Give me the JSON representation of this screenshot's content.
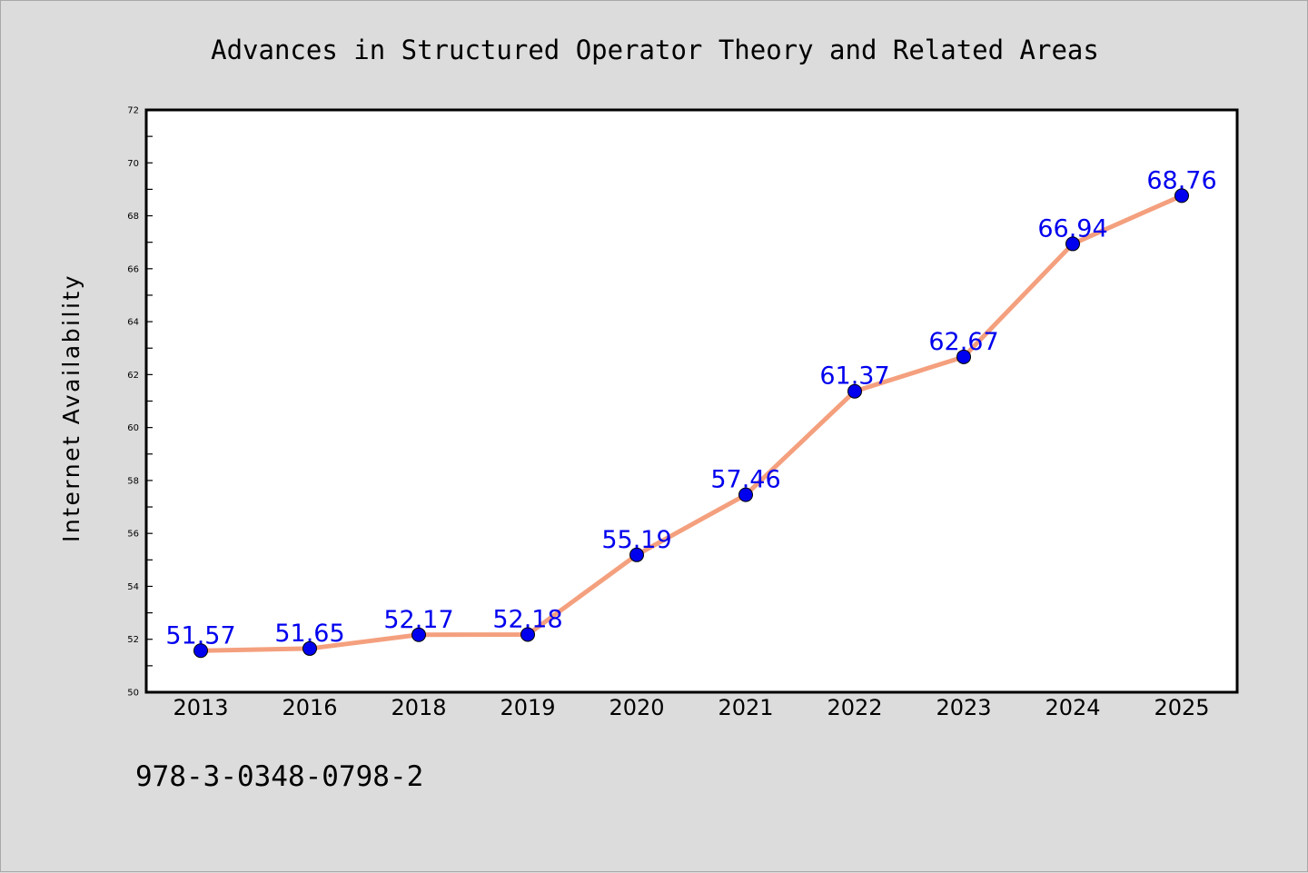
{
  "chart_data": {
    "type": "line",
    "title": "Advances in Structured Operator Theory and Related Areas",
    "xlabel": "",
    "ylabel": "Internet Availability",
    "categories": [
      "2013",
      "2016",
      "2018",
      "2019",
      "2020",
      "2021",
      "2022",
      "2023",
      "2024",
      "2025"
    ],
    "values": [
      51.57,
      51.65,
      52.17,
      52.18,
      55.19,
      57.46,
      61.37,
      62.67,
      66.94,
      68.76
    ],
    "data_labels": [
      "51.57",
      "51.65",
      "52.17",
      "52.18",
      "55.19",
      "57.46",
      "61.37",
      "62.67",
      "66.94",
      "68.76"
    ],
    "ylim": [
      50,
      72
    ],
    "yticks": [
      "50",
      "52",
      "54",
      "56",
      "58",
      "60",
      "62",
      "64",
      "66",
      "68",
      "70",
      "72"
    ],
    "grid": false,
    "legend": "none",
    "colors": {
      "line": "#f4a07e",
      "marker": "#0000ee",
      "label": "#0000ee"
    }
  },
  "footer": {
    "isbn": "978-3-0348-0798-2"
  }
}
